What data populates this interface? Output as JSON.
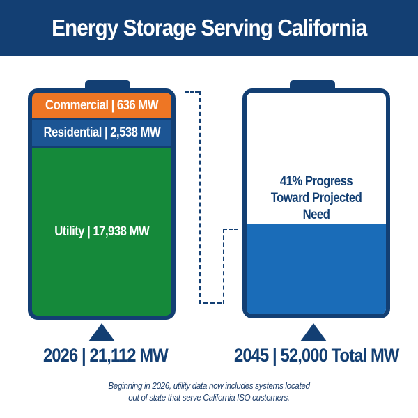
{
  "header": {
    "title": "Energy Storage Serving California"
  },
  "battery_2026": {
    "commercial_label": "Commercial | 636 MW",
    "residential_label": "Residential | 2,538 MW",
    "utility_label": "Utility | 17,938 MW",
    "total_label": "2026 | 21,112 MW"
  },
  "battery_2045": {
    "progress_line1": "41% Progress",
    "progress_line2": "Toward Projected",
    "progress_line3": "Need",
    "progress_fraction": 0.41,
    "total_label": "2045 | 52,000 Total  MW"
  },
  "footnote": {
    "line1": "Beginning in 2026, utility data now includes systems located",
    "line2": "out of state that serve California ISO customers."
  },
  "colors": {
    "navy": "#133f73",
    "commercial": "#ee7624",
    "residential": "#1c5594",
    "utility": "#15893a",
    "progress_fill": "#1a6cb8"
  }
}
